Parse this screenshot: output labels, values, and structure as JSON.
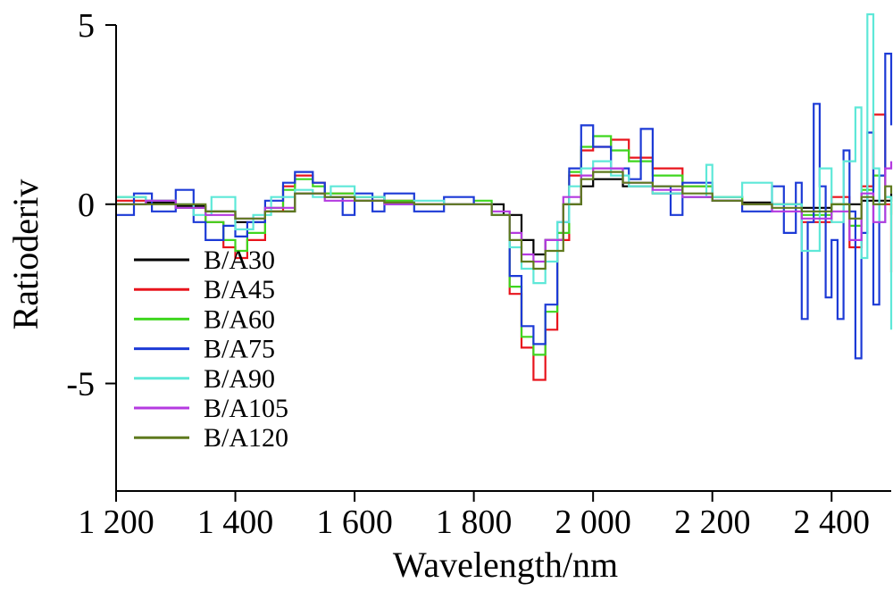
{
  "chart_data": {
    "type": "line",
    "title": "",
    "xlabel": "Wavelength/nm",
    "ylabel": "Ratioderiv",
    "xlim": [
      1200,
      2500
    ],
    "ylim": [
      -8,
      5
    ],
    "x_ticks": [
      1200,
      1400,
      1600,
      1800,
      2000,
      2200,
      2400
    ],
    "x_tick_labels": [
      "1 200",
      "1 400",
      "1 600",
      "1 800",
      "2 000",
      "2 200",
      "2 400"
    ],
    "y_ticks": [
      5,
      0,
      -5
    ],
    "y_tick_labels": [
      "5",
      "0",
      "-5"
    ],
    "grid": false,
    "legend_position": "bottom-left",
    "series": [
      {
        "name": "B/A30",
        "color": "#000000",
        "points": [
          [
            1200,
            0
          ],
          [
            1250,
            0.05
          ],
          [
            1300,
            -0.05
          ],
          [
            1350,
            -0.2
          ],
          [
            1400,
            -0.5
          ],
          [
            1450,
            -0.2
          ],
          [
            1500,
            0.3
          ],
          [
            1550,
            0.2
          ],
          [
            1600,
            0.1
          ],
          [
            1650,
            0
          ],
          [
            1700,
            0
          ],
          [
            1750,
            0
          ],
          [
            1800,
            0
          ],
          [
            1850,
            -0.3
          ],
          [
            1880,
            -1.0
          ],
          [
            1900,
            -1.4
          ],
          [
            1920,
            -1.0
          ],
          [
            1950,
            0
          ],
          [
            1980,
            0.5
          ],
          [
            2000,
            0.7
          ],
          [
            2050,
            0.5
          ],
          [
            2100,
            0.3
          ],
          [
            2150,
            0.2
          ],
          [
            2200,
            0.1
          ],
          [
            2250,
            0.05
          ],
          [
            2300,
            0
          ],
          [
            2350,
            -0.1
          ],
          [
            2400,
            0
          ],
          [
            2450,
            0.1
          ],
          [
            2500,
            0.3
          ]
        ]
      },
      {
        "name": "B/A45",
        "color": "#e8141c",
        "points": [
          [
            1200,
            0.1
          ],
          [
            1250,
            0.1
          ],
          [
            1300,
            -0.1
          ],
          [
            1350,
            -0.5
          ],
          [
            1380,
            -1.2
          ],
          [
            1400,
            -1.5
          ],
          [
            1420,
            -1.0
          ],
          [
            1450,
            -0.2
          ],
          [
            1480,
            0.5
          ],
          [
            1500,
            0.8
          ],
          [
            1530,
            0.6
          ],
          [
            1550,
            0.3
          ],
          [
            1600,
            0.2
          ],
          [
            1650,
            0.1
          ],
          [
            1700,
            0
          ],
          [
            1750,
            0
          ],
          [
            1800,
            0
          ],
          [
            1830,
            -0.3
          ],
          [
            1860,
            -2.5
          ],
          [
            1880,
            -4.0
          ],
          [
            1900,
            -4.9
          ],
          [
            1920,
            -3.5
          ],
          [
            1940,
            -1.0
          ],
          [
            1960,
            0.8
          ],
          [
            1980,
            1.5
          ],
          [
            2000,
            1.6
          ],
          [
            2030,
            1.8
          ],
          [
            2060,
            1.3
          ],
          [
            2100,
            1.0
          ],
          [
            2150,
            0.5
          ],
          [
            2200,
            0.2
          ],
          [
            2250,
            0
          ],
          [
            2300,
            0
          ],
          [
            2350,
            -0.5
          ],
          [
            2400,
            0.2
          ],
          [
            2430,
            -1.2
          ],
          [
            2450,
            0.5
          ],
          [
            2470,
            2.5
          ],
          [
            2490,
            0
          ],
          [
            2500,
            -1.9
          ]
        ]
      },
      {
        "name": "B/A60",
        "color": "#3ed61e",
        "points": [
          [
            1200,
            0.2
          ],
          [
            1250,
            0.1
          ],
          [
            1300,
            -0.1
          ],
          [
            1350,
            -0.5
          ],
          [
            1380,
            -1.0
          ],
          [
            1400,
            -1.3
          ],
          [
            1420,
            -0.8
          ],
          [
            1450,
            -0.1
          ],
          [
            1480,
            0.4
          ],
          [
            1500,
            0.7
          ],
          [
            1530,
            0.5
          ],
          [
            1550,
            0.3
          ],
          [
            1600,
            0.2
          ],
          [
            1650,
            0.1
          ],
          [
            1700,
            0
          ],
          [
            1750,
            0
          ],
          [
            1800,
            0.1
          ],
          [
            1830,
            -0.3
          ],
          [
            1860,
            -2.3
          ],
          [
            1880,
            -3.7
          ],
          [
            1900,
            -4.2
          ],
          [
            1920,
            -3.0
          ],
          [
            1940,
            -0.8
          ],
          [
            1960,
            0.9
          ],
          [
            1980,
            1.6
          ],
          [
            2000,
            1.9
          ],
          [
            2030,
            1.5
          ],
          [
            2060,
            1.2
          ],
          [
            2100,
            0.8
          ],
          [
            2150,
            0.5
          ],
          [
            2200,
            0.2
          ],
          [
            2250,
            0
          ],
          [
            2300,
            0
          ],
          [
            2350,
            -0.3
          ],
          [
            2400,
            0
          ],
          [
            2430,
            -0.6
          ],
          [
            2450,
            0.4
          ],
          [
            2470,
            0.8
          ],
          [
            2490,
            0.2
          ],
          [
            2500,
            -0.3
          ]
        ]
      },
      {
        "name": "B/A75",
        "color": "#1c3ad6",
        "points": [
          [
            1200,
            -0.3
          ],
          [
            1230,
            0.3
          ],
          [
            1260,
            -0.2
          ],
          [
            1300,
            0.4
          ],
          [
            1330,
            -0.5
          ],
          [
            1350,
            -1.0
          ],
          [
            1380,
            -0.6
          ],
          [
            1400,
            -0.9
          ],
          [
            1420,
            -0.5
          ],
          [
            1450,
            0.1
          ],
          [
            1480,
            0.6
          ],
          [
            1500,
            0.9
          ],
          [
            1530,
            0.6
          ],
          [
            1550,
            0.2
          ],
          [
            1580,
            -0.3
          ],
          [
            1600,
            0.3
          ],
          [
            1630,
            -0.2
          ],
          [
            1650,
            0.3
          ],
          [
            1700,
            -0.2
          ],
          [
            1750,
            0.2
          ],
          [
            1800,
            0
          ],
          [
            1830,
            -0.3
          ],
          [
            1860,
            -2.0
          ],
          [
            1880,
            -3.4
          ],
          [
            1900,
            -3.9
          ],
          [
            1920,
            -2.8
          ],
          [
            1940,
            -0.5
          ],
          [
            1960,
            1.0
          ],
          [
            1980,
            2.2
          ],
          [
            2000,
            1.6
          ],
          [
            2030,
            1.0
          ],
          [
            2060,
            0.7
          ],
          [
            2080,
            2.1
          ],
          [
            2100,
            0.5
          ],
          [
            2130,
            -0.3
          ],
          [
            2150,
            0.6
          ],
          [
            2200,
            0.1
          ],
          [
            2250,
            -0.2
          ],
          [
            2300,
            0.5
          ],
          [
            2320,
            -0.8
          ],
          [
            2340,
            0.6
          ],
          [
            2350,
            -3.2
          ],
          [
            2360,
            -0.5
          ],
          [
            2370,
            2.8
          ],
          [
            2380,
            0.5
          ],
          [
            2390,
            -2.6
          ],
          [
            2400,
            -1.0
          ],
          [
            2410,
            -3.2
          ],
          [
            2420,
            1.5
          ],
          [
            2430,
            -0.2
          ],
          [
            2440,
            -4.3
          ],
          [
            2450,
            -0.8
          ],
          [
            2460,
            2.0
          ],
          [
            2470,
            -2.8
          ],
          [
            2480,
            0.8
          ],
          [
            2490,
            4.2
          ],
          [
            2500,
            2.2
          ]
        ]
      },
      {
        "name": "B/A90",
        "color": "#5ee8d8",
        "points": [
          [
            1200,
            0.2
          ],
          [
            1250,
            0.1
          ],
          [
            1300,
            0
          ],
          [
            1330,
            -0.3
          ],
          [
            1360,
            0.2
          ],
          [
            1400,
            -0.7
          ],
          [
            1430,
            -0.3
          ],
          [
            1460,
            0.2
          ],
          [
            1500,
            0.4
          ],
          [
            1530,
            0.2
          ],
          [
            1560,
            0.5
          ],
          [
            1600,
            0.2
          ],
          [
            1650,
            0
          ],
          [
            1700,
            0.1
          ],
          [
            1750,
            0
          ],
          [
            1800,
            0
          ],
          [
            1830,
            -0.3
          ],
          [
            1860,
            -1.2
          ],
          [
            1880,
            -1.8
          ],
          [
            1900,
            -2.2
          ],
          [
            1920,
            -1.6
          ],
          [
            1940,
            -0.5
          ],
          [
            1960,
            0.5
          ],
          [
            1980,
            1.0
          ],
          [
            2000,
            1.2
          ],
          [
            2030,
            0.8
          ],
          [
            2060,
            0.5
          ],
          [
            2100,
            0.3
          ],
          [
            2150,
            0.2
          ],
          [
            2190,
            1.1
          ],
          [
            2200,
            0.2
          ],
          [
            2250,
            0.6
          ],
          [
            2300,
            0
          ],
          [
            2350,
            -1.3
          ],
          [
            2380,
            1.0
          ],
          [
            2400,
            -0.5
          ],
          [
            2420,
            1.2
          ],
          [
            2440,
            2.7
          ],
          [
            2450,
            -1.5
          ],
          [
            2460,
            5.3
          ],
          [
            2470,
            1.0
          ],
          [
            2480,
            -0.5
          ],
          [
            2490,
            0.2
          ],
          [
            2500,
            -3.5
          ]
        ]
      },
      {
        "name": "B/A105",
        "color": "#b43ae0",
        "points": [
          [
            1200,
            0
          ],
          [
            1250,
            0.1
          ],
          [
            1300,
            -0.1
          ],
          [
            1350,
            -0.3
          ],
          [
            1400,
            -0.4
          ],
          [
            1450,
            -0.1
          ],
          [
            1500,
            0.3
          ],
          [
            1550,
            0.1
          ],
          [
            1600,
            0.1
          ],
          [
            1650,
            0
          ],
          [
            1700,
            0
          ],
          [
            1750,
            0
          ],
          [
            1800,
            0
          ],
          [
            1830,
            -0.2
          ],
          [
            1860,
            -0.8
          ],
          [
            1880,
            -1.4
          ],
          [
            1900,
            -1.6
          ],
          [
            1920,
            -1.0
          ],
          [
            1950,
            0.2
          ],
          [
            1980,
            0.8
          ],
          [
            2000,
            1.0
          ],
          [
            2050,
            0.6
          ],
          [
            2100,
            0.4
          ],
          [
            2150,
            0.2
          ],
          [
            2200,
            0.1
          ],
          [
            2250,
            0
          ],
          [
            2300,
            -0.2
          ],
          [
            2350,
            -0.4
          ],
          [
            2400,
            -0.2
          ],
          [
            2430,
            -1.0
          ],
          [
            2450,
            0.3
          ],
          [
            2470,
            -0.5
          ],
          [
            2490,
            1.0
          ],
          [
            2500,
            1.2
          ]
        ]
      },
      {
        "name": "B/A120",
        "color": "#5f7a1e",
        "points": [
          [
            1200,
            0
          ],
          [
            1250,
            0
          ],
          [
            1300,
            0
          ],
          [
            1350,
            -0.2
          ],
          [
            1400,
            -0.4
          ],
          [
            1450,
            -0.2
          ],
          [
            1500,
            0.3
          ],
          [
            1550,
            0.2
          ],
          [
            1600,
            0.1
          ],
          [
            1650,
            0.05
          ],
          [
            1700,
            0
          ],
          [
            1750,
            0
          ],
          [
            1800,
            0
          ],
          [
            1830,
            -0.3
          ],
          [
            1860,
            -1.0
          ],
          [
            1880,
            -1.6
          ],
          [
            1900,
            -1.8
          ],
          [
            1920,
            -1.3
          ],
          [
            1950,
            0
          ],
          [
            1980,
            0.7
          ],
          [
            2000,
            0.9
          ],
          [
            2050,
            0.6
          ],
          [
            2100,
            0.5
          ],
          [
            2150,
            0.3
          ],
          [
            2200,
            0.1
          ],
          [
            2250,
            0
          ],
          [
            2300,
            -0.1
          ],
          [
            2350,
            -0.2
          ],
          [
            2400,
            0
          ],
          [
            2430,
            -0.4
          ],
          [
            2450,
            0.2
          ],
          [
            2470,
            0
          ],
          [
            2490,
            0.5
          ],
          [
            2500,
            0.3
          ]
        ]
      }
    ]
  }
}
